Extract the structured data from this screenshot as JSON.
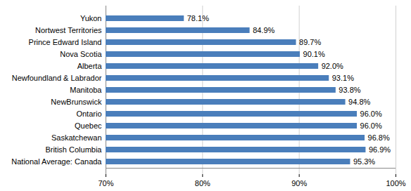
{
  "chart_data": {
    "type": "bar",
    "orientation": "horizontal",
    "categories": [
      "Yukon",
      "Nortwest Territories",
      "Prince Edward Island",
      "Nova Scotia",
      "Alberta",
      "Newfoundland & Labrador",
      "Manitoba",
      "NewBrunswick",
      "Ontario",
      "Quebec",
      "Saskatchewan",
      "British Columbia",
      "National Average: Canada"
    ],
    "values": [
      78.1,
      84.9,
      89.7,
      90.1,
      92.0,
      93.1,
      93.8,
      94.8,
      96.0,
      96.0,
      96.8,
      96.9,
      95.3
    ],
    "value_labels": [
      "78.1%",
      "84.9%",
      "89.7%",
      "90.1%",
      "92.0%",
      "93.1%",
      "93.8%",
      "94.8%",
      "96.0%",
      "96.0%",
      "96.8%",
      "96.9%",
      "95.3%"
    ],
    "data_labels": true,
    "color": "#4a7ebb",
    "xlim": [
      70,
      100
    ],
    "xticks": [
      {
        "value": 70,
        "label": "70%"
      },
      {
        "value": 80,
        "label": "80%"
      },
      {
        "value": 90,
        "label": "90%"
      },
      {
        "value": 100,
        "label": "100%"
      }
    ],
    "grid": true
  }
}
